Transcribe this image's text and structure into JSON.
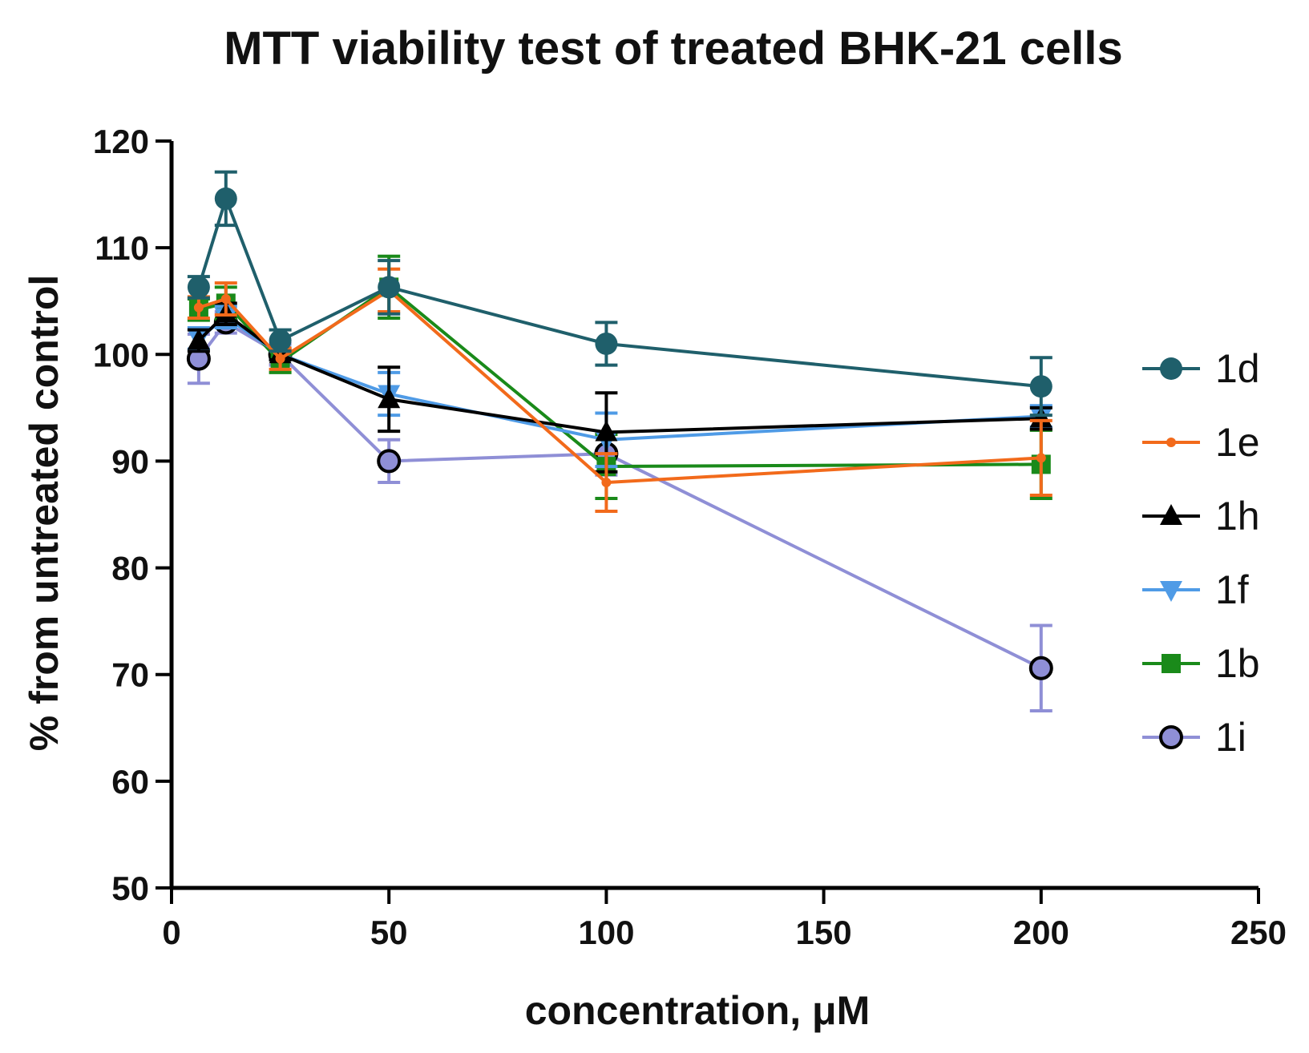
{
  "chart_data": {
    "type": "line",
    "title": "MTT viability test of treated BHK-21 cells",
    "xlabel": "concentration, μM",
    "ylabel": "% from untreated control",
    "xlim": [
      0,
      250
    ],
    "ylim": [
      50,
      120
    ],
    "xticks": [
      0,
      50,
      100,
      150,
      200,
      250
    ],
    "yticks": [
      50,
      60,
      70,
      80,
      90,
      100,
      110,
      120
    ],
    "legend_position": "right",
    "series": [
      {
        "name": "1d",
        "color": "#1f5f6b",
        "marker": "circle",
        "x": [
          6.25,
          12.5,
          25,
          50,
          100,
          200
        ],
        "y": [
          106.3,
          114.6,
          101.3,
          106.3,
          101.0,
          97.0
        ],
        "err": [
          1.0,
          2.5,
          1.0,
          2.5,
          2.0,
          2.7
        ]
      },
      {
        "name": "1e",
        "color": "#f26a1b",
        "marker": "small-dot",
        "x": [
          6.25,
          12.5,
          25,
          50,
          100,
          200
        ],
        "y": [
          104.4,
          105.2,
          99.6,
          106.0,
          88.0,
          90.3
        ],
        "err": [
          1.0,
          1.5,
          1.0,
          2.0,
          2.7,
          3.5
        ]
      },
      {
        "name": "1h",
        "color": "#000000",
        "marker": "triangle-up",
        "x": [
          6.25,
          12.5,
          25,
          50,
          100,
          200
        ],
        "y": [
          101.3,
          103.8,
          100.0,
          95.8,
          92.7,
          94.0
        ],
        "err": [
          1.0,
          1.0,
          0.5,
          3.0,
          3.7,
          1.0
        ]
      },
      {
        "name": "1f",
        "color": "#4f9be6",
        "marker": "triangle-down",
        "x": [
          6.25,
          12.5,
          25,
          50,
          100,
          200
        ],
        "y": [
          101.5,
          103.5,
          100.0,
          96.3,
          92.0,
          94.2
        ],
        "err": [
          1.0,
          1.0,
          0.5,
          2.0,
          2.5,
          1.0
        ]
      },
      {
        "name": "1b",
        "color": "#1a8a1a",
        "marker": "square",
        "x": [
          6.25,
          12.5,
          25,
          50,
          100,
          200
        ],
        "y": [
          104.2,
          104.8,
          99.3,
          106.3,
          89.5,
          89.7
        ],
        "err": [
          1.0,
          1.5,
          1.0,
          2.9,
          3.0,
          3.2
        ]
      },
      {
        "name": "1i",
        "color": "#8f8fd6",
        "marker": "circle-outlined",
        "x": [
          6.25,
          12.5,
          25,
          50,
          100,
          200
        ],
        "y": [
          99.6,
          103.0,
          100.0,
          90.0,
          90.7,
          70.6
        ],
        "err": [
          2.3,
          1.0,
          1.0,
          2.0,
          2.0,
          4.0
        ]
      }
    ]
  }
}
